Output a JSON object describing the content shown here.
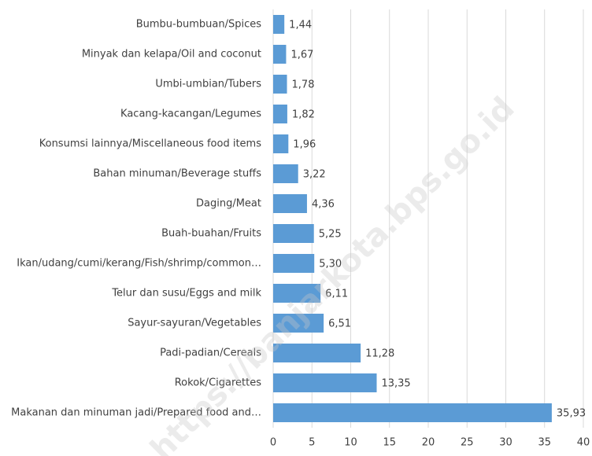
{
  "chart_data": {
    "type": "bar",
    "orientation": "horizontal",
    "categories": [
      "Bumbu-bumbuan/Spices",
      "Minyak dan kelapa/Oil and coconut",
      "Umbi-umbian/Tubers",
      "Kacang-kacangan/Legumes",
      "Konsumsi lainnya/Miscellaneous food items",
      "Bahan minuman/Beverage stuffs",
      "Daging/Meat",
      "Buah-buahan/Fruits",
      "Ikan/udang/cumi/kerang/Fish/shrimp/common…",
      "Telur dan susu/Eggs and milk",
      "Sayur-sayuran/Vegetables",
      "Padi-padian/Cereals",
      "Rokok/Cigarettes",
      "Makanan dan minuman jadi/Prepared food and…"
    ],
    "values": [
      1.44,
      1.67,
      1.78,
      1.82,
      1.96,
      3.22,
      4.36,
      5.25,
      5.3,
      6.11,
      6.51,
      11.28,
      13.35,
      35.93
    ],
    "value_labels": [
      "1,44",
      "1,67",
      "1,78",
      "1,82",
      "1,96",
      "3,22",
      "4,36",
      "5,25",
      "5,30",
      "6,11",
      "6,51",
      "11,28",
      "13,35",
      "35,93"
    ],
    "color": "#5b9bd5",
    "xlim": [
      0,
      40
    ],
    "xticks": [
      0,
      5,
      10,
      15,
      20,
      25,
      30,
      35,
      40
    ],
    "grid": true,
    "watermark": "https://banjarkota.bps.go.id"
  }
}
